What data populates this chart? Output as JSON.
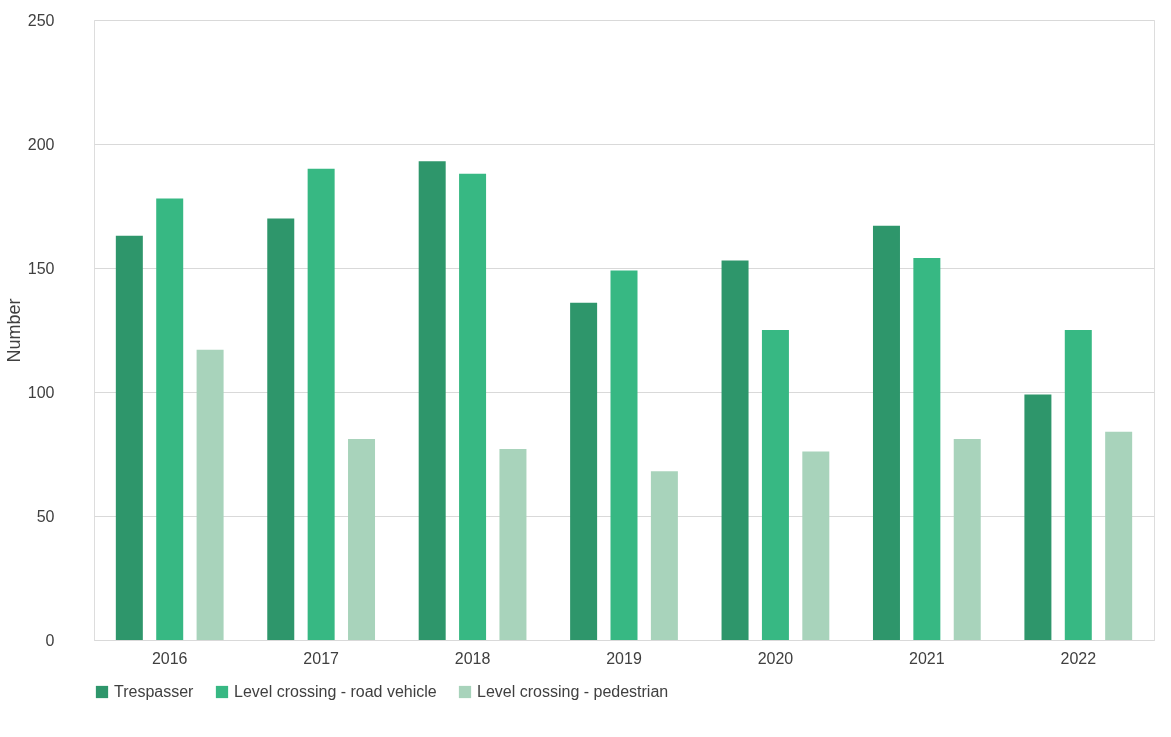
{
  "chart_data": {
    "type": "bar",
    "ylabel": "Number",
    "categories": [
      "2016",
      "2017",
      "2018",
      "2019",
      "2020",
      "2021",
      "2022"
    ],
    "series": [
      {
        "name": "Trespasser",
        "color": "#2e966b",
        "values": [
          163,
          170,
          193,
          136,
          153,
          167,
          99
        ]
      },
      {
        "name": "Level crossing - road vehicle",
        "color": "#37b883",
        "values": [
          178,
          190,
          188,
          149,
          125,
          154,
          125
        ]
      },
      {
        "name": "Level crossing - pedestrian",
        "color": "#a8d3bb",
        "values": [
          117,
          81,
          77,
          68,
          76,
          81,
          84
        ]
      }
    ],
    "ylim": [
      0,
      250
    ],
    "yticks": [
      0,
      50,
      100,
      150,
      200,
      250
    ],
    "grid": "y",
    "legend": "bottom"
  }
}
